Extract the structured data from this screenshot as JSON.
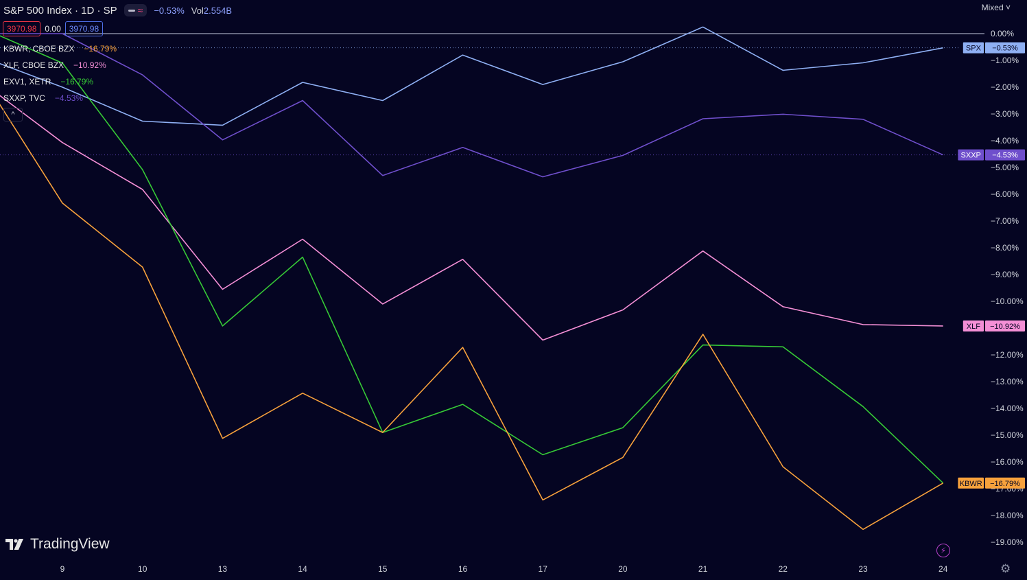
{
  "header": {
    "title": "S&P 500 Index · 1D · SP",
    "change": "−0.53%",
    "vol_label": "Vol",
    "vol_value": "2.554B"
  },
  "prices": {
    "bid": "3970.98",
    "spread": "0.00",
    "ask": "3970.98"
  },
  "legend": [
    {
      "name": "KBWR, CBOE BZX",
      "value": "−16.79%",
      "color": "#f7a13c"
    },
    {
      "name": "XLF, CBOE BZX",
      "value": "−10.92%",
      "color": "#f48fd6"
    },
    {
      "name": "EXV1, XETR",
      "value": "−16.79%",
      "color": "#36c936"
    },
    {
      "name": "SXXP, TVC",
      "value": "−4.53%",
      "color": "#6f4fcc"
    }
  ],
  "scale_mode": "Mixed",
  "brand": "TradingView",
  "chart_data": {
    "type": "line",
    "x": [
      "9",
      "10",
      "13",
      "14",
      "15",
      "16",
      "17",
      "20",
      "21",
      "22",
      "23",
      "24"
    ],
    "xlabel": "",
    "ylabel": "",
    "y_unit": "%",
    "ylim": [
      -19.6,
      1.15
    ],
    "y_ticks": [
      "0.00%",
      "−1.00%",
      "−2.00%",
      "−3.00%",
      "−4.00%",
      "−5.00%",
      "−6.00%",
      "−7.00%",
      "−8.00%",
      "−9.00%",
      "−10.00%",
      "−11.00%",
      "−12.00%",
      "−13.00%",
      "−14.00%",
      "−15.00%",
      "−16.00%",
      "−17.00%",
      "−18.00%",
      "−19.00%"
    ],
    "grid": false,
    "zero_line": true,
    "series": [
      {
        "name": "SPX",
        "color": "#8fb0f4",
        "x0": -1.6,
        "start": -0.2,
        "values": [
          -2.0,
          -3.27,
          -3.42,
          -1.82,
          -2.5,
          -0.8,
          -1.9,
          -1.05,
          0.25,
          -1.37,
          -1.09,
          -0.53
        ],
        "end_label": "−0.53%"
      },
      {
        "name": "SXXP",
        "color": "#6f4fcc",
        "x0": -1.6,
        "start": 0.0,
        "values": [
          0.0,
          -1.54,
          -3.97,
          -2.5,
          -5.3,
          -4.25,
          -5.35,
          -4.55,
          -3.18,
          -3.01,
          -3.2,
          -4.53
        ],
        "end_label": "−4.53%"
      },
      {
        "name": "XLF",
        "color": "#f48fd6",
        "x0": -0.92,
        "start": -2.0,
        "values": [
          -4.07,
          -5.82,
          -9.55,
          -7.68,
          -10.1,
          -8.43,
          -11.45,
          -10.32,
          -8.12,
          -10.2,
          -10.87,
          -10.92
        ],
        "end_label": "−10.92%"
      },
      {
        "name": "EXV1",
        "color": "#36c936",
        "x0": -0.92,
        "start": 0.1,
        "values": [
          -1.1,
          -5.08,
          -10.92,
          -8.35,
          -14.9,
          -13.85,
          -15.73,
          -14.72,
          -11.63,
          -11.7,
          -13.93,
          -16.79
        ],
        "end_label": "−16.79%"
      },
      {
        "name": "KBWR",
        "color": "#f7a13c",
        "x0": -0.92,
        "start": -2.0,
        "values": [
          -6.33,
          -8.72,
          -15.12,
          -13.43,
          -14.9,
          -11.72,
          -17.42,
          -15.83,
          -11.23,
          -16.18,
          -18.52,
          -16.79
        ],
        "end_label": "−16.79%"
      }
    ]
  }
}
